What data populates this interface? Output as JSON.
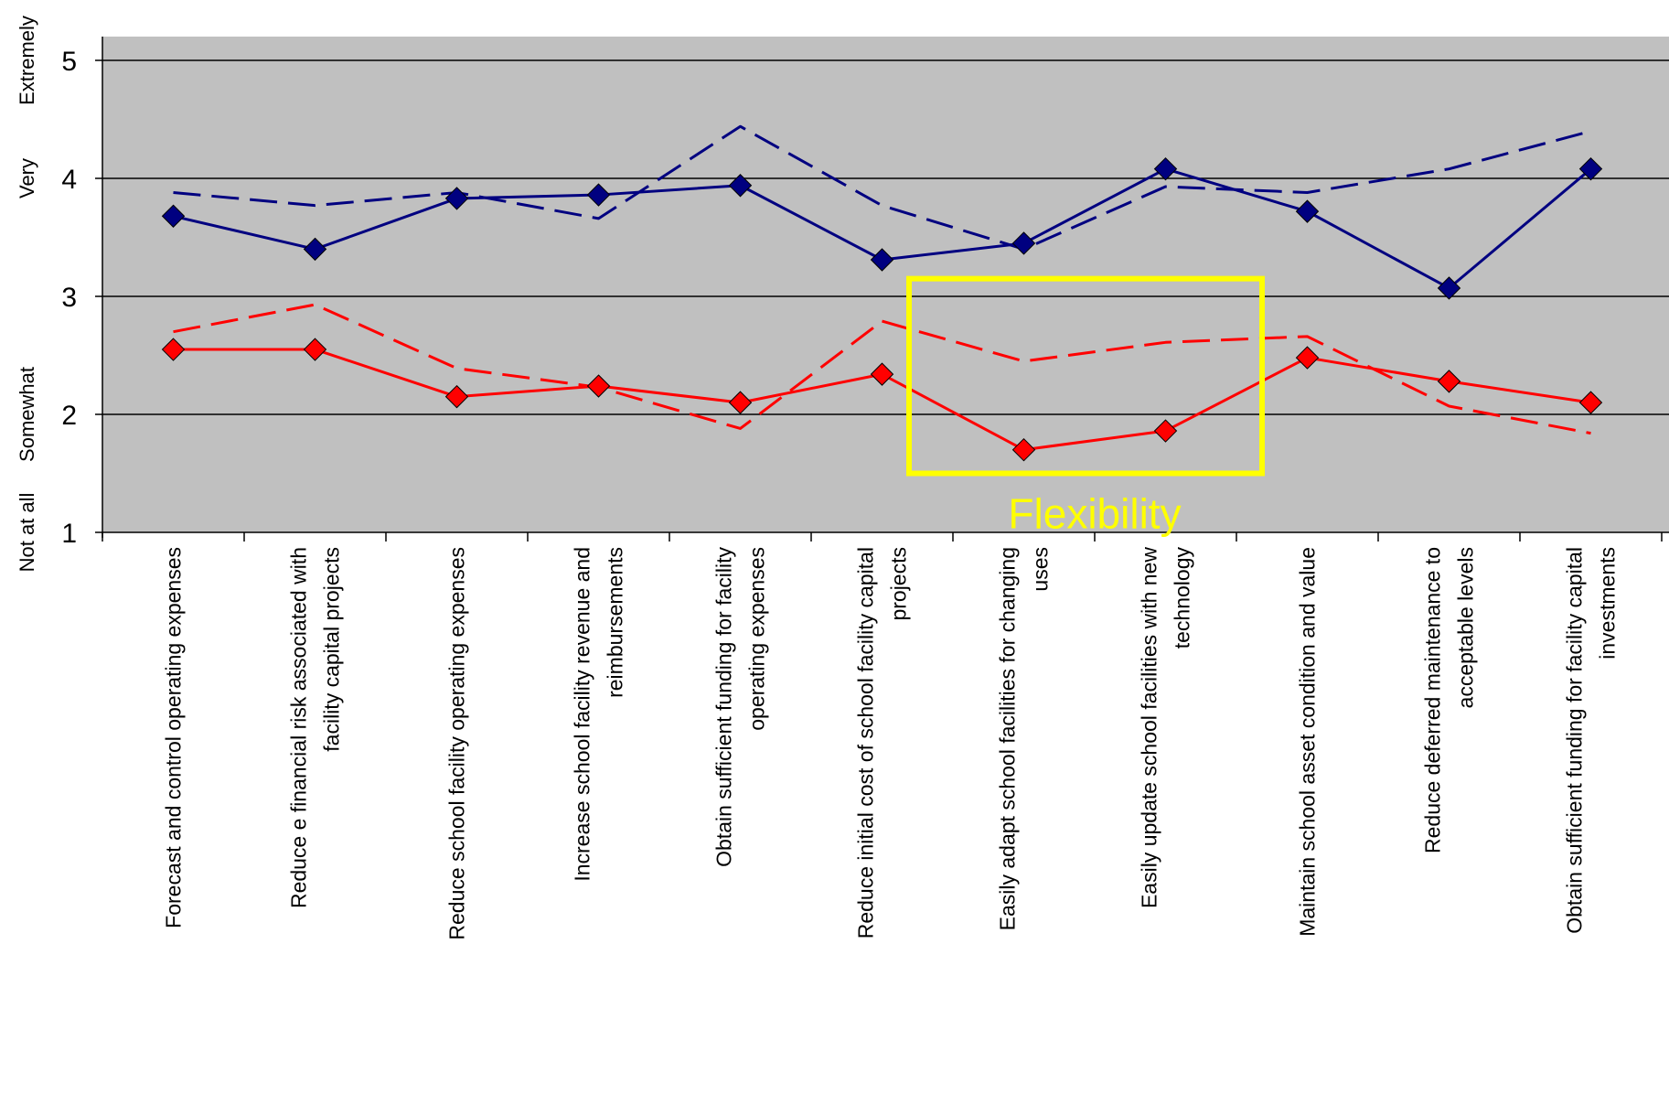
{
  "chart_data": {
    "type": "line",
    "title": "",
    "xlabel": "",
    "ylabel": "",
    "ylim": [
      1,
      5
    ],
    "yticks": [
      1,
      2,
      3,
      4,
      5
    ],
    "y_category_labels": [
      {
        "value": 1,
        "label": "Not at all"
      },
      {
        "value": 2,
        "label": "Somewhat"
      },
      {
        "value": 4,
        "label": "Very"
      },
      {
        "value": 5,
        "label": "Extremely"
      }
    ],
    "grid": true,
    "legend": "none",
    "categories": [
      [
        "Forecast and control operating expenses"
      ],
      [
        "Reduce e financial risk associated with",
        "facility capital projects"
      ],
      [
        "Reduce school facility operating expenses"
      ],
      [
        "Increase school facility revenue and",
        "reimbursements"
      ],
      [
        "Obtain sufficient funding for facility",
        "operating expenses"
      ],
      [
        "Reduce initial cost of school facility capital",
        "projects"
      ],
      [
        "Easily adapt school facilities for changing",
        "uses"
      ],
      [
        "Easily update school facilities with new",
        "technology"
      ],
      [
        "Maintain school asset condition and value"
      ],
      [
        "Reduce deferred maintenance to",
        "acceptable levels"
      ],
      [
        "Obtain sufficient funding for facility capital",
        "investments"
      ]
    ],
    "series": [
      {
        "color": "#000080",
        "dash": "dashed",
        "marker": "none",
        "values": [
          3.88,
          3.77,
          3.88,
          3.66,
          4.44,
          3.77,
          3.4,
          3.93,
          3.88,
          4.08,
          4.4
        ]
      },
      {
        "color": "#000080",
        "dash": "solid",
        "marker": "diamond",
        "values": [
          3.68,
          3.4,
          3.83,
          3.86,
          3.94,
          3.31,
          3.45,
          4.08,
          3.72,
          3.07,
          4.08
        ]
      },
      {
        "color": "#ff0000",
        "dash": "dashed",
        "marker": "none",
        "values": [
          2.7,
          2.93,
          2.39,
          2.23,
          1.88,
          2.79,
          2.45,
          2.61,
          2.66,
          2.07,
          1.84
        ]
      },
      {
        "color": "#ff0000",
        "dash": "solid",
        "marker": "diamond",
        "values": [
          2.55,
          2.55,
          2.15,
          2.24,
          2.1,
          2.34,
          1.7,
          1.86,
          2.48,
          2.28,
          2.1
        ]
      }
    ],
    "annotations": [
      {
        "text": "Flexibility",
        "color": "#ffff00",
        "box_categories": [
          6,
          7
        ],
        "box_y": [
          1.5,
          3.15
        ]
      }
    ],
    "colors": {
      "plot_background": "#c0c0c0",
      "gridline": "#000000"
    }
  }
}
